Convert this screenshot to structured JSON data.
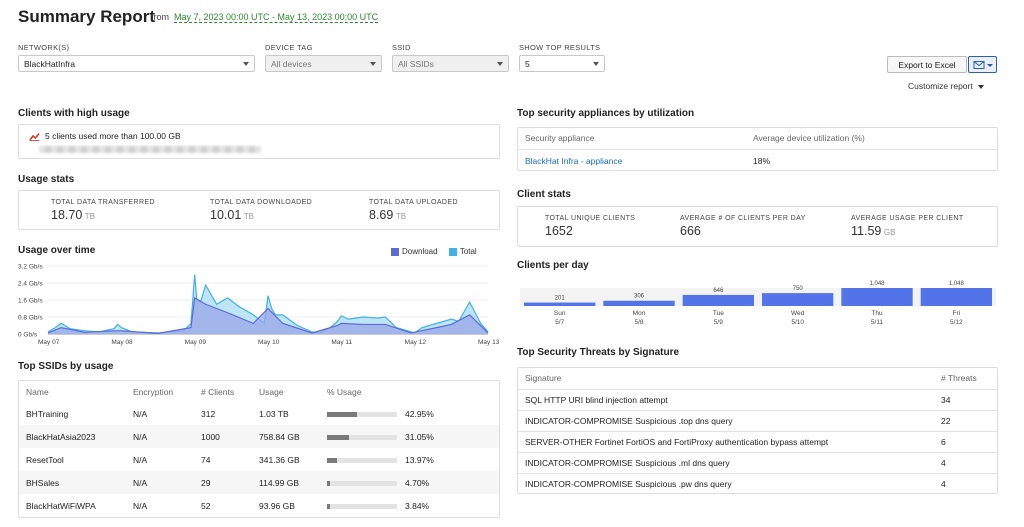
{
  "header": {
    "title": "Summary Report",
    "from_label": "from",
    "date_range": "May 7, 2023 00:00 UTC - May 13, 2023 00:00 UTC"
  },
  "filters": {
    "network": {
      "label": "NETWORK(S)",
      "value": "BlackHatInfra"
    },
    "device_tag": {
      "label": "DEVICE TAG",
      "value": "All devices"
    },
    "ssid": {
      "label": "SSID",
      "value": "All SSIDs"
    },
    "top_results": {
      "label": "SHOW TOP RESULTS",
      "value": "5"
    }
  },
  "actions": {
    "export_label": "Export to Excel",
    "customize_label": "Customize report"
  },
  "high_usage": {
    "title": "Clients with high usage",
    "message": "5 clients used more than 100.00 GB"
  },
  "usage_stats": {
    "title": "Usage stats",
    "items": [
      {
        "label": "TOTAL DATA TRANSFERRED",
        "value": "18.70",
        "unit": "TB"
      },
      {
        "label": "TOTAL DATA DOWNLOADED",
        "value": "10.01",
        "unit": "TB"
      },
      {
        "label": "TOTAL DATA UPLOADED",
        "value": "8.69",
        "unit": "TB"
      }
    ]
  },
  "usage_over_time": {
    "title": "Usage over time",
    "legend": [
      {
        "name": "Download",
        "color": "#5a6bd6"
      },
      {
        "name": "Total",
        "color": "#3fb2e3"
      }
    ]
  },
  "chart_data": [
    {
      "type": "area",
      "title": "Usage over time",
      "y_ticks": [
        "3.2 Gb/s",
        "2.4 Gb/s",
        "1.6 Gb/s",
        "0.8 Gb/s",
        "0 Gb/s"
      ],
      "y_range": [
        0,
        3.2
      ],
      "x_ticks": [
        "May 07",
        "May 08",
        "May 09",
        "May 10",
        "May 11",
        "May 12",
        "May 13"
      ],
      "x_range": [
        0,
        6
      ],
      "series": [
        {
          "name": "Total",
          "x": [
            0,
            0.1,
            0.18,
            0.3,
            0.5,
            0.7,
            0.9,
            0.95,
            1.0,
            1.15,
            1.5,
            1.85,
            1.95,
            2.0,
            2.03,
            2.08,
            2.15,
            2.3,
            2.45,
            2.6,
            2.8,
            2.95,
            3.0,
            3.05,
            3.1,
            3.2,
            3.4,
            3.6,
            3.7,
            3.85,
            3.95,
            4.0,
            4.1,
            4.3,
            4.5,
            4.6,
            4.75,
            4.95,
            5.0,
            5.1,
            5.3,
            5.5,
            5.6,
            5.75,
            5.9,
            6.0
          ],
          "values": [
            0.1,
            0.3,
            0.5,
            0.25,
            0.15,
            0.1,
            0.25,
            0.45,
            0.3,
            0.1,
            0.05,
            0.15,
            0.5,
            2.8,
            1.6,
            1.5,
            2.3,
            1.4,
            1.7,
            1.3,
            0.9,
            0.5,
            1.8,
            1.2,
            0.9,
            0.9,
            0.4,
            0.1,
            0.05,
            0.3,
            0.6,
            0.85,
            0.7,
            0.8,
            0.75,
            0.8,
            0.3,
            0.1,
            0.05,
            0.3,
            0.5,
            0.7,
            0.6,
            1.5,
            0.5,
            0.1
          ]
        },
        {
          "name": "Download",
          "x": [
            0,
            0.18,
            0.5,
            0.9,
            1.0,
            1.5,
            1.95,
            2.0,
            2.15,
            2.45,
            2.8,
            3.0,
            3.2,
            3.6,
            3.95,
            4.0,
            4.3,
            4.6,
            4.95,
            5.3,
            5.5,
            5.75,
            6.0
          ],
          "values": [
            0.05,
            0.3,
            0.08,
            0.15,
            0.15,
            0.03,
            0.3,
            1.7,
            1.4,
            1.0,
            0.5,
            1.2,
            0.5,
            0.05,
            0.4,
            0.5,
            0.45,
            0.45,
            0.05,
            0.3,
            0.45,
            0.9,
            0.05
          ]
        }
      ]
    },
    {
      "type": "bar",
      "title": "Clients per day",
      "categories": [
        "Sun",
        "Mon",
        "Tue",
        "Wed",
        "Thu",
        "Fri"
      ],
      "dates": [
        "5/7",
        "5/8",
        "5/9",
        "5/10",
        "5/11",
        "5/12"
      ],
      "values": [
        201,
        306,
        646,
        750,
        1048,
        1048
      ],
      "ylim": [
        0,
        1048
      ]
    }
  ],
  "top_ssids": {
    "title": "Top SSIDs by usage",
    "columns": [
      "Name",
      "Encryption",
      "# Clients",
      "Usage",
      "% Usage"
    ],
    "rows": [
      {
        "name": "BHTraining",
        "encryption": "N/A",
        "clients": "312",
        "usage": "1.03 TB",
        "pct": "42.95%",
        "frac": 0.4295
      },
      {
        "name": "BlackHatAsia2023",
        "encryption": "N/A",
        "clients": "1000",
        "usage": "758.84 GB",
        "pct": "31.05%",
        "frac": 0.3105
      },
      {
        "name": "ResetTool",
        "encryption": "N/A",
        "clients": "74",
        "usage": "341.36 GB",
        "pct": "13.97%",
        "frac": 0.1397
      },
      {
        "name": "BHSales",
        "encryption": "N/A",
        "clients": "29",
        "usage": "114.99 GB",
        "pct": "4.70%",
        "frac": 0.047
      },
      {
        "name": "BlackHatWiFiWPA",
        "encryption": "N/A",
        "clients": "52",
        "usage": "93.96 GB",
        "pct": "3.84%",
        "frac": 0.0384
      }
    ]
  },
  "top_appliances": {
    "title": "Top security appliances by utilization",
    "columns": [
      "Security appliance",
      "Average device utilization (%)"
    ],
    "rows": [
      {
        "name": "BlackHat Infra - appliance",
        "util": "18%"
      }
    ]
  },
  "client_stats": {
    "title": "Client stats",
    "items": [
      {
        "label": "TOTAL UNIQUE CLIENTS",
        "value": "1652",
        "unit": ""
      },
      {
        "label": "AVERAGE # OF CLIENTS PER DAY",
        "value": "666",
        "unit": ""
      },
      {
        "label": "AVERAGE USAGE PER CLIENT",
        "value": "11.59",
        "unit": "GB"
      }
    ]
  },
  "clients_per_day": {
    "title": "Clients per day"
  },
  "threats": {
    "title": "Top Security Threats by Signature",
    "columns": [
      "Signature",
      "# Threats"
    ],
    "rows": [
      {
        "sig": "SQL HTTP URI blind injection attempt",
        "count": "34"
      },
      {
        "sig": "INDICATOR-COMPROMISE Suspicious .top dns query",
        "count": "22"
      },
      {
        "sig": "SERVER-OTHER Fortinet FortiOS and FortiProxy authentication bypass attempt",
        "count": "6"
      },
      {
        "sig": "INDICATOR-COMPROMISE Suspicious .ml dns query",
        "count": "4"
      },
      {
        "sig": "INDICATOR-COMPROMISE Suspicious .pw dns query",
        "count": "4"
      }
    ]
  }
}
